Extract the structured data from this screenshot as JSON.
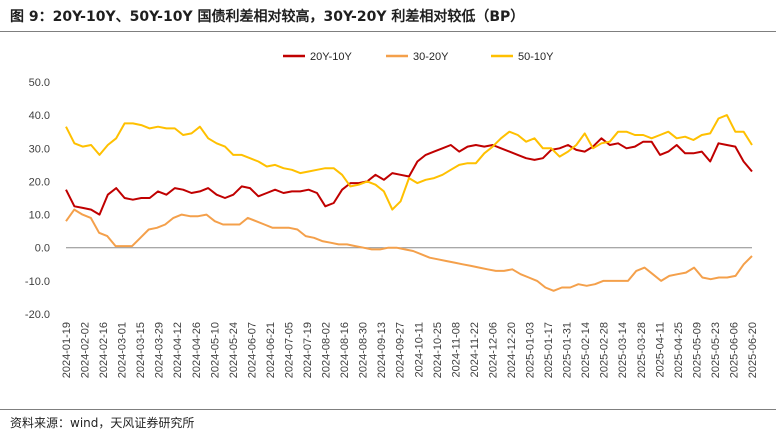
{
  "header": {
    "title": "图 9：20Y-10Y、50Y-10Y 国债利差相对较高，30Y-20Y 利差相对较低（BP）"
  },
  "footer": {
    "source": "资料来源：wind，天风证券研究所"
  },
  "chart_data": {
    "type": "line",
    "title": "图 9：20Y-10Y、50Y-10Y 国债利差相对较高，30Y-20Y 利差相对较低（BP）",
    "xlabel": "",
    "ylabel": "",
    "ylim": [
      -20,
      50
    ],
    "yticks": [
      "50.0",
      "40.0",
      "30.0",
      "20.0",
      "10.0",
      "0.0",
      "-10.0",
      "-20.0"
    ],
    "grid": false,
    "legend_position": "top-center",
    "x_tick_labels": [
      "2024-01-19",
      "2024-02-02",
      "2024-02-16",
      "2024-03-01",
      "2024-03-15",
      "2024-03-29",
      "2024-04-12",
      "2024-04-26",
      "2024-05-10",
      "2024-05-24",
      "2024-06-07",
      "2024-06-21",
      "2024-07-05",
      "2024-07-19",
      "2024-08-02",
      "2024-08-16",
      "2024-08-30",
      "2024-09-13",
      "2024-09-27",
      "2024-10-11",
      "2024-10-25",
      "2024-11-08",
      "2024-11-22",
      "2024-12-06",
      "2024-12-20",
      "2025-01-03",
      "2025-01-17",
      "2025-01-31",
      "2025-02-14",
      "2025-02-28",
      "2025-03-14",
      "2025-03-28",
      "2025-04-11",
      "2025-04-25",
      "2025-05-09",
      "2025-05-23",
      "2025-06-06",
      "2025-06-20"
    ],
    "series": [
      {
        "name": "20Y-10Y",
        "color": "#c00000",
        "values": [
          17.5,
          12.5,
          12,
          11.5,
          10,
          16,
          18,
          15,
          14.5,
          15,
          15,
          17,
          16,
          18,
          17.5,
          16.5,
          17,
          18,
          16,
          15,
          16,
          18.5,
          18,
          15.5,
          16.5,
          17.5,
          16.5,
          17,
          17,
          17.5,
          16.5,
          12.5,
          13.5,
          17.5,
          19.5,
          19.5,
          20,
          22,
          20.5,
          22.5,
          22,
          21.5,
          26,
          28,
          29,
          30,
          31,
          29,
          30.5,
          31,
          30.5,
          31,
          30,
          29,
          28,
          27,
          26.5,
          27,
          29.5,
          30,
          31,
          29.5,
          29,
          30.5,
          33,
          31,
          31.5,
          30,
          30.5,
          32,
          32,
          28,
          29,
          31,
          28.5,
          28.5,
          29,
          26,
          31.5,
          31,
          30.5,
          26,
          23
        ]
      },
      {
        "name": "30-20Y",
        "color": "#f4a04b",
        "values": [
          8,
          11.5,
          10,
          9,
          4.5,
          3.5,
          0.5,
          0.5,
          0.5,
          3,
          5.5,
          6,
          7,
          9,
          10,
          9.5,
          9.5,
          10,
          8,
          7,
          7,
          7,
          9,
          8,
          7,
          6,
          6,
          6,
          5.5,
          3.5,
          3,
          2,
          1.5,
          1,
          1,
          0.5,
          0,
          -0.5,
          -0.5,
          0,
          0,
          -0.5,
          -1,
          -2,
          -3,
          -3.5,
          -4,
          -4.5,
          -5,
          -5.5,
          -6,
          -6.5,
          -7,
          -7,
          -6.5,
          -8,
          -9,
          -10,
          -12,
          -13,
          -12,
          -12,
          -11,
          -11.5,
          -11,
          -10,
          -10,
          -10,
          -10,
          -7,
          -6,
          -8,
          -10,
          -8.5,
          -8,
          -7.5,
          -6,
          -9,
          -9.5,
          -9,
          -9,
          -8.5,
          -5,
          -2.5
        ]
      },
      {
        "name": "50-10Y",
        "color": "#ffc000",
        "values": [
          36.5,
          31.5,
          30.5,
          31,
          28,
          31,
          33,
          37.5,
          37.5,
          37,
          36,
          36.5,
          36,
          36,
          34,
          34.5,
          36.5,
          33,
          31.5,
          30.5,
          28,
          28,
          27,
          26,
          24.5,
          25,
          24,
          23.5,
          22.5,
          23,
          23.5,
          24,
          24,
          22,
          18.5,
          19,
          20,
          19,
          17,
          11.5,
          14,
          21,
          19.5,
          20.5,
          21,
          22,
          23.5,
          25,
          25.5,
          25.5,
          28.5,
          30.5,
          33,
          35,
          34,
          32,
          33,
          30,
          30,
          27.5,
          29,
          31,
          34.5,
          30,
          31.5,
          32,
          35,
          35,
          34,
          34,
          33,
          34,
          35,
          33,
          33.5,
          32.5,
          34,
          34.5,
          39,
          40,
          35,
          35,
          31
        ]
      }
    ]
  }
}
